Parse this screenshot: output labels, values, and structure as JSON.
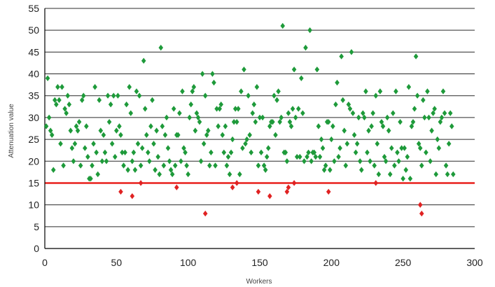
{
  "chart_data": {
    "type": "scatter",
    "title": "",
    "xlabel": "Workers",
    "ylabel": "Attenuation value",
    "xlim": [
      0,
      300
    ],
    "ylim": [
      0,
      55
    ],
    "xticks": [
      0,
      50,
      100,
      150,
      200,
      250,
      300
    ],
    "yticks": [
      0,
      5,
      10,
      15,
      20,
      25,
      30,
      35,
      40,
      45,
      50,
      55
    ],
    "grid": "horizontal",
    "legend": "none",
    "threshold": {
      "y": 15,
      "color": "#e8201c"
    },
    "colors": {
      "above": "#1e9a3a",
      "below": "#e02222",
      "grid": "#2b2b2b"
    },
    "series": [
      {
        "values": [
          [
            1,
            28
          ],
          [
            2,
            39
          ],
          [
            3,
            30
          ],
          [
            4,
            27
          ],
          [
            5,
            26
          ],
          [
            6,
            18
          ],
          [
            7,
            34
          ],
          [
            8,
            33
          ],
          [
            9,
            37
          ],
          [
            10,
            34
          ],
          [
            11,
            24
          ],
          [
            12,
            37
          ],
          [
            13,
            19
          ],
          [
            14,
            32
          ],
          [
            15,
            31
          ],
          [
            16,
            35
          ],
          [
            17,
            33
          ],
          [
            18,
            27
          ],
          [
            19,
            23
          ],
          [
            20,
            20
          ],
          [
            21,
            24
          ],
          [
            22,
            28
          ],
          [
            23,
            27
          ],
          [
            24,
            29
          ],
          [
            25,
            19
          ],
          [
            26,
            34
          ],
          [
            27,
            35
          ],
          [
            28,
            23
          ],
          [
            29,
            28
          ],
          [
            30,
            21
          ],
          [
            31,
            16
          ],
          [
            32,
            16
          ],
          [
            33,
            19
          ],
          [
            34,
            24
          ],
          [
            35,
            37
          ],
          [
            36,
            22
          ],
          [
            37,
            17
          ],
          [
            38,
            34
          ],
          [
            39,
            27
          ],
          [
            40,
            20
          ],
          [
            41,
            26
          ],
          [
            42,
            22
          ],
          [
            43,
            20
          ],
          [
            44,
            35
          ],
          [
            45,
            29
          ],
          [
            46,
            33
          ],
          [
            47,
            24
          ],
          [
            48,
            35
          ],
          [
            49,
            21
          ],
          [
            50,
            27
          ],
          [
            51,
            35
          ],
          [
            52,
            28
          ],
          [
            53,
            26
          ],
          [
            54,
            22
          ],
          [
            55,
            19
          ],
          [
            56,
            22
          ],
          [
            57,
            33
          ],
          [
            58,
            18
          ],
          [
            59,
            37
          ],
          [
            60,
            31
          ],
          [
            61,
            20
          ],
          [
            62,
            22
          ],
          [
            63,
            18
          ],
          [
            64,
            36
          ],
          [
            65,
            24
          ],
          [
            66,
            35
          ],
          [
            67,
            19
          ],
          [
            68,
            23
          ],
          [
            69,
            43
          ],
          [
            70,
            32
          ],
          [
            71,
            26
          ],
          [
            72,
            22
          ],
          [
            73,
            20
          ],
          [
            74,
            28
          ],
          [
            75,
            34
          ],
          [
            76,
            24
          ],
          [
            77,
            18
          ],
          [
            78,
            27
          ],
          [
            79,
            21
          ],
          [
            80,
            17
          ],
          [
            81,
            46
          ],
          [
            82,
            28
          ],
          [
            83,
            19
          ],
          [
            84,
            26
          ],
          [
            85,
            30
          ],
          [
            86,
            23
          ],
          [
            87,
            20
          ],
          [
            88,
            18
          ],
          [
            89,
            17
          ],
          [
            90,
            32
          ],
          [
            91,
            19
          ],
          [
            92,
            26
          ],
          [
            93,
            26
          ],
          [
            94,
            31
          ],
          [
            95,
            20
          ],
          [
            96,
            36
          ],
          [
            97,
            23
          ],
          [
            98,
            22
          ],
          [
            99,
            19
          ],
          [
            100,
            17
          ],
          [
            101,
            30
          ],
          [
            102,
            33
          ],
          [
            103,
            36
          ],
          [
            104,
            37
          ],
          [
            105,
            27
          ],
          [
            106,
            31
          ],
          [
            107,
            30
          ],
          [
            108,
            29
          ],
          [
            109,
            20
          ],
          [
            110,
            40
          ],
          [
            111,
            24
          ],
          [
            112,
            35
          ],
          [
            113,
            26
          ],
          [
            114,
            27
          ],
          [
            115,
            19
          ],
          [
            116,
            22
          ],
          [
            117,
            40
          ],
          [
            118,
            38
          ],
          [
            119,
            19
          ],
          [
            120,
            32
          ],
          [
            121,
            28
          ],
          [
            122,
            32
          ],
          [
            123,
            33
          ],
          [
            124,
            26
          ],
          [
            125,
            22
          ],
          [
            126,
            28
          ],
          [
            127,
            19
          ],
          [
            128,
            21
          ],
          [
            129,
            17
          ],
          [
            130,
            22
          ],
          [
            131,
            25
          ],
          [
            132,
            29
          ],
          [
            133,
            32
          ],
          [
            134,
            29
          ],
          [
            135,
            32
          ],
          [
            136,
            17
          ],
          [
            137,
            36
          ],
          [
            138,
            23
          ],
          [
            139,
            41
          ],
          [
            140,
            24
          ],
          [
            141,
            25
          ],
          [
            142,
            35
          ],
          [
            143,
            26
          ],
          [
            144,
            22
          ],
          [
            145,
            31
          ],
          [
            146,
            33
          ],
          [
            147,
            29
          ],
          [
            148,
            37
          ],
          [
            149,
            19
          ],
          [
            150,
            30
          ],
          [
            151,
            22
          ],
          [
            152,
            30
          ],
          [
            153,
            19
          ],
          [
            154,
            18
          ],
          [
            155,
            21
          ],
          [
            156,
            23
          ],
          [
            157,
            28
          ],
          [
            158,
            29
          ],
          [
            159,
            29
          ],
          [
            160,
            35
          ],
          [
            161,
            26
          ],
          [
            162,
            34
          ],
          [
            163,
            36
          ],
          [
            164,
            29
          ],
          [
            165,
            30
          ],
          [
            166,
            51
          ],
          [
            167,
            22
          ],
          [
            168,
            22
          ],
          [
            169,
            20
          ],
          [
            170,
            31
          ],
          [
            171,
            29
          ],
          [
            172,
            28
          ],
          [
            173,
            32
          ],
          [
            174,
            41
          ],
          [
            175,
            30
          ],
          [
            176,
            21
          ],
          [
            177,
            32
          ],
          [
            178,
            21
          ],
          [
            179,
            39
          ],
          [
            180,
            31
          ],
          [
            181,
            20
          ],
          [
            182,
            46
          ],
          [
            183,
            21
          ],
          [
            184,
            22
          ],
          [
            185,
            50
          ],
          [
            186,
            20
          ],
          [
            187,
            22
          ],
          [
            188,
            22
          ],
          [
            189,
            21
          ],
          [
            190,
            41
          ],
          [
            191,
            28
          ],
          [
            192,
            21
          ],
          [
            193,
            25
          ],
          [
            194,
            23
          ],
          [
            195,
            18
          ],
          [
            196,
            19
          ],
          [
            197,
            29
          ],
          [
            198,
            29
          ],
          [
            199,
            18
          ],
          [
            200,
            25
          ],
          [
            201,
            28
          ],
          [
            202,
            20
          ],
          [
            203,
            33
          ],
          [
            204,
            38
          ],
          [
            205,
            21
          ],
          [
            206,
            23
          ],
          [
            207,
            44
          ],
          [
            208,
            34
          ],
          [
            209,
            27
          ],
          [
            210,
            19
          ],
          [
            211,
            24
          ],
          [
            212,
            33
          ],
          [
            213,
            32
          ],
          [
            214,
            45
          ],
          [
            215,
            31
          ],
          [
            216,
            26
          ],
          [
            217,
            22
          ],
          [
            218,
            24
          ],
          [
            219,
            30
          ],
          [
            220,
            20
          ],
          [
            221,
            18
          ],
          [
            222,
            31
          ],
          [
            223,
            30
          ],
          [
            224,
            36
          ],
          [
            225,
            22
          ],
          [
            226,
            27
          ],
          [
            227,
            20
          ],
          [
            228,
            28
          ],
          [
            229,
            31
          ],
          [
            230,
            19
          ],
          [
            231,
            35
          ],
          [
            232,
            24
          ],
          [
            233,
            17
          ],
          [
            234,
            36
          ],
          [
            235,
            29
          ],
          [
            236,
            28
          ],
          [
            237,
            21
          ],
          [
            238,
            20
          ],
          [
            239,
            30
          ],
          [
            240,
            27
          ],
          [
            241,
            17
          ],
          [
            242,
            23
          ],
          [
            243,
            31
          ],
          [
            244,
            19
          ],
          [
            245,
            36
          ],
          [
            246,
            22
          ],
          [
            247,
            20
          ],
          [
            248,
            29
          ],
          [
            249,
            23
          ],
          [
            250,
            16
          ],
          [
            251,
            23
          ],
          [
            252,
            18
          ],
          [
            253,
            21
          ],
          [
            254,
            37
          ],
          [
            255,
            16
          ],
          [
            256,
            28
          ],
          [
            257,
            29
          ],
          [
            258,
            32
          ],
          [
            259,
            44
          ],
          [
            260,
            35
          ],
          [
            261,
            24
          ],
          [
            262,
            23
          ],
          [
            263,
            19
          ],
          [
            264,
            34
          ],
          [
            265,
            30
          ],
          [
            266,
            22
          ],
          [
            267,
            36
          ],
          [
            268,
            30
          ],
          [
            269,
            20
          ],
          [
            270,
            27
          ],
          [
            271,
            31
          ],
          [
            272,
            32
          ],
          [
            273,
            17
          ],
          [
            274,
            25
          ],
          [
            275,
            23
          ],
          [
            276,
            29
          ],
          [
            277,
            30
          ],
          [
            278,
            36
          ],
          [
            279,
            31
          ],
          [
            280,
            19
          ],
          [
            281,
            17
          ],
          [
            282,
            24
          ],
          [
            283,
            31
          ],
          [
            284,
            28
          ],
          [
            285,
            17
          ]
        ]
      },
      {
        "values": [
          [
            53,
            13
          ],
          [
            61,
            12
          ],
          [
            67,
            15
          ],
          [
            92,
            14
          ],
          [
            112,
            8
          ],
          [
            131,
            14
          ],
          [
            134,
            15
          ],
          [
            149,
            13
          ],
          [
            157,
            12
          ],
          [
            169,
            13
          ],
          [
            170,
            14
          ],
          [
            174,
            15
          ],
          [
            198,
            13
          ],
          [
            231,
            15
          ],
          [
            262,
            10
          ],
          [
            263,
            8
          ]
        ]
      }
    ]
  }
}
